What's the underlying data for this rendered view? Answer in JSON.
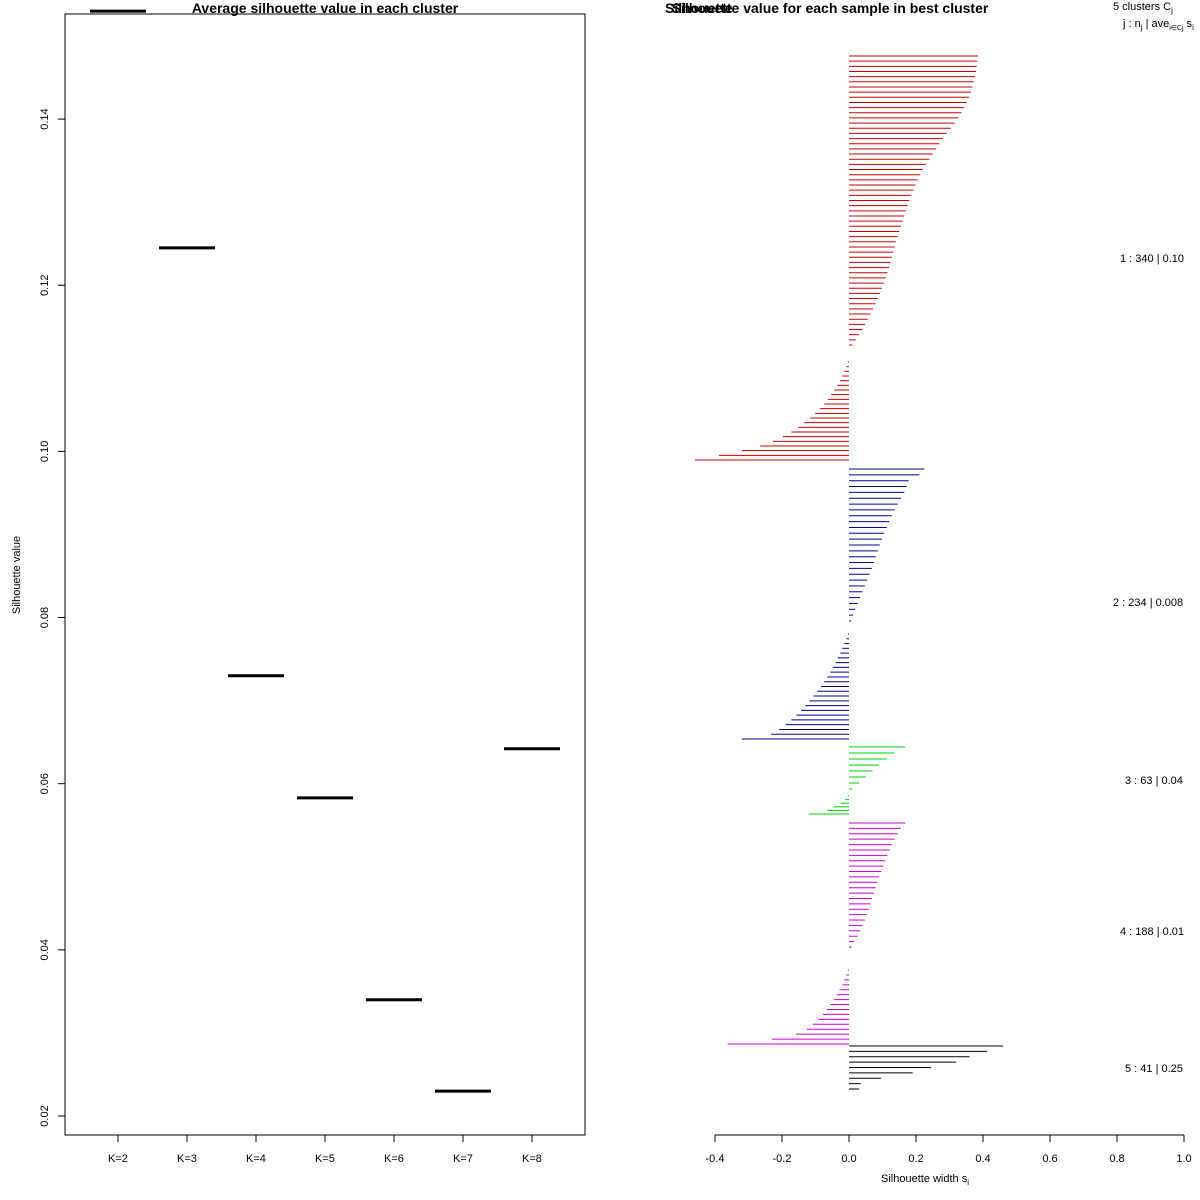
{
  "chart_data": [
    {
      "type": "scatter",
      "marker": "horizontal-segment",
      "title": "Average silhouette value in each cluster",
      "xlabel": "",
      "ylabel": "Silhouette value",
      "categories": [
        "K=2",
        "K=3",
        "K=4",
        "K=5",
        "K=6",
        "K=7",
        "K=8"
      ],
      "values": [
        0.153,
        0.1245,
        0.073,
        0.0583,
        0.034,
        0.023,
        0.0642
      ],
      "ylim": [
        0.018,
        0.155
      ],
      "yticks": [
        0.02,
        0.04,
        0.06,
        0.08,
        0.1,
        0.12,
        0.14
      ],
      "ytick_labels": [
        "0.02",
        "0.04",
        "0.06",
        "0.08",
        "0.10",
        "0.12",
        "0.14"
      ],
      "color": "#000000"
    },
    {
      "type": "bar",
      "orientation": "horizontal",
      "title": "Silhouette value for each sample in best cluster",
      "title_overlap": "Silhouette",
      "xlabel": "Silhouette width s",
      "xlabel_sub": "i",
      "xlim": [
        -0.4,
        1.0
      ],
      "xticks": [
        -0.4,
        -0.2,
        0.0,
        0.2,
        0.4,
        0.6,
        0.8,
        1.0
      ],
      "xtick_labels": [
        "-0.4",
        "-0.2",
        "0.0",
        "0.2",
        "0.4",
        "0.6",
        "0.8",
        "1.0"
      ],
      "header_line1": "5  clusters  C",
      "header_line1_sub": "j",
      "header_line2": "j :  n",
      "header_line2_sub": "j",
      "header_line2_rest": " | ave",
      "header_line2_sub2": "i∈Cj",
      "header_line2_end": "  s",
      "header_line2_end_sub": "i",
      "clusters": [
        {
          "label": "1 :  340  |  0.10",
          "color": "#cc0000",
          "pos": [
            0.385,
            0.383,
            0.381,
            0.379,
            0.376,
            0.372,
            0.368,
            0.364,
            0.358,
            0.352,
            0.344,
            0.336,
            0.326,
            0.316,
            0.304,
            0.292,
            0.28,
            0.27,
            0.26,
            0.25,
            0.24,
            0.23,
            0.22,
            0.212,
            0.205,
            0.198,
            0.192,
            0.186,
            0.18,
            0.175,
            0.17,
            0.165,
            0.16,
            0.155,
            0.15,
            0.145,
            0.14,
            0.136,
            0.132,
            0.128,
            0.124,
            0.12,
            0.115,
            0.11,
            0.104,
            0.098,
            0.092,
            0.086,
            0.079,
            0.072,
            0.064,
            0.056,
            0.048,
            0.04,
            0.03,
            0.02,
            0.01
          ],
          "neg": [
            -0.003,
            -0.008,
            -0.014,
            -0.02,
            -0.027,
            -0.035,
            -0.044,
            -0.053,
            -0.063,
            -0.074,
            -0.087,
            -0.101,
            -0.116,
            -0.133,
            -0.151,
            -0.172,
            -0.197,
            -0.227,
            -0.265,
            -0.32,
            -0.388,
            -0.46
          ]
        },
        {
          "label": "2 :  234  |  0.008",
          "color": "#000099",
          "pos": [
            0.225,
            0.21,
            0.178,
            0.172,
            0.165,
            0.155,
            0.145,
            0.136,
            0.128,
            0.12,
            0.112,
            0.105,
            0.098,
            0.092,
            0.086,
            0.08,
            0.074,
            0.068,
            0.061,
            0.054,
            0.047,
            0.04,
            0.033,
            0.026,
            0.019,
            0.012,
            0.006
          ],
          "neg": [
            -0.003,
            -0.008,
            -0.014,
            -0.02,
            -0.026,
            -0.033,
            -0.04,
            -0.048,
            -0.056,
            -0.065,
            -0.074,
            -0.084,
            -0.095,
            -0.106,
            -0.118,
            -0.13,
            -0.143,
            -0.157,
            -0.172,
            -0.189,
            -0.208,
            -0.232,
            -0.32
          ]
        },
        {
          "label": "3 :  63  |  0.04",
          "color": "#00cc00",
          "pos": [
            0.168,
            0.135,
            0.112,
            0.09,
            0.07,
            0.05,
            0.03,
            0.01
          ],
          "neg": [
            -0.003,
            -0.012,
            -0.025,
            -0.045,
            -0.065,
            -0.12
          ]
        },
        {
          "label": "4 :  188  |  0.01",
          "color": "#cc00cc",
          "pos": [
            0.168,
            0.155,
            0.145,
            0.136,
            0.128,
            0.121,
            0.114,
            0.108,
            0.102,
            0.096,
            0.09,
            0.085,
            0.08,
            0.074,
            0.069,
            0.064,
            0.059,
            0.053,
            0.047,
            0.04,
            0.033,
            0.025,
            0.016,
            0.008
          ],
          "neg": [
            -0.003,
            -0.008,
            -0.014,
            -0.02,
            -0.028,
            -0.036,
            -0.045,
            -0.055,
            -0.066,
            -0.078,
            -0.092,
            -0.108,
            -0.126,
            -0.158,
            -0.23,
            -0.362
          ]
        },
        {
          "label": "5 :  41  |  0.25",
          "color": "#000000",
          "pos": [
            0.46,
            0.412,
            0.36,
            0.32,
            0.245,
            0.19,
            0.095,
            0.035,
            0.03
          ],
          "neg": []
        }
      ]
    }
  ]
}
